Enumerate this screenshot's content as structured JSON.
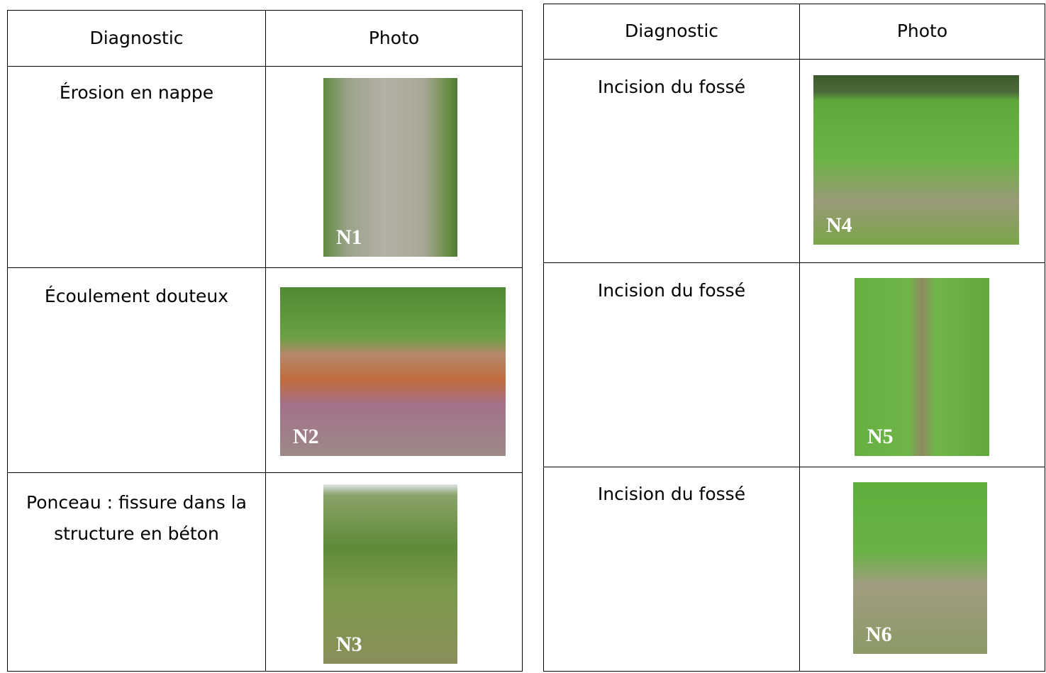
{
  "tables": [
    {
      "header": [
        "Diagnostic",
        "Photo"
      ],
      "rows": [
        {
          "diagnostic": "Érosion en nappe",
          "photo_label": "N1"
        },
        {
          "diagnostic": "Écoulement douteux",
          "photo_label": "N2"
        },
        {
          "diagnostic": "Ponceau : fissure dans la structure en béton",
          "photo_label": "N3"
        }
      ]
    },
    {
      "header": [
        "Diagnostic",
        "Photo"
      ],
      "rows": [
        {
          "diagnostic": "Incision du fossé",
          "photo_label": "N4"
        },
        {
          "diagnostic": "Incision du fossé",
          "photo_label": "N5"
        },
        {
          "diagnostic": "Incision du fossé",
          "photo_label": "N6"
        }
      ]
    }
  ]
}
